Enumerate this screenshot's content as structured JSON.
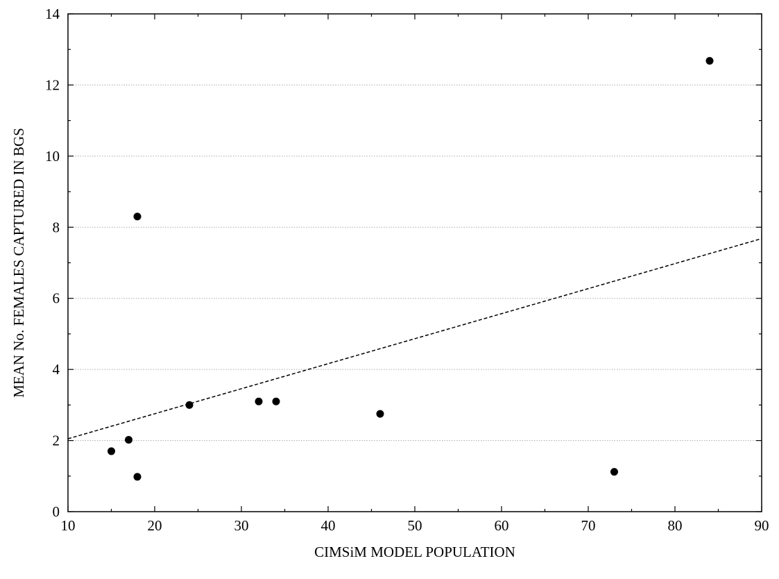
{
  "chart_data": {
    "type": "scatter",
    "title": "",
    "xlabel": "CIMSiM MODEL POPULATION",
    "ylabel": "MEAN No. FEMALES CAPTURED IN BGS",
    "xlim": [
      10,
      90
    ],
    "ylim": [
      0,
      14
    ],
    "x_ticks": [
      "10",
      "20",
      "30",
      "40",
      "50",
      "60",
      "70",
      "80",
      "90"
    ],
    "y_ticks": [
      "0",
      "2",
      "4",
      "6",
      "8",
      "10",
      "12",
      "14"
    ],
    "grid": "horizontal dotted",
    "series": [
      {
        "points": [
          {
            "x": 15,
            "y": 1.7
          },
          {
            "x": 17,
            "y": 2.02
          },
          {
            "x": 18,
            "y": 0.98
          },
          {
            "x": 18,
            "y": 8.3
          },
          {
            "x": 24,
            "y": 3.0
          },
          {
            "x": 32,
            "y": 3.1
          },
          {
            "x": 34,
            "y": 3.1
          },
          {
            "x": 46,
            "y": 2.75
          },
          {
            "x": 73,
            "y": 1.12
          },
          {
            "x": 84,
            "y": 12.68
          }
        ]
      }
    ],
    "trendline": {
      "style": "dashed",
      "start": {
        "x": 10,
        "y": 2.05
      },
      "end": {
        "x": 90,
        "y": 7.68
      }
    }
  }
}
